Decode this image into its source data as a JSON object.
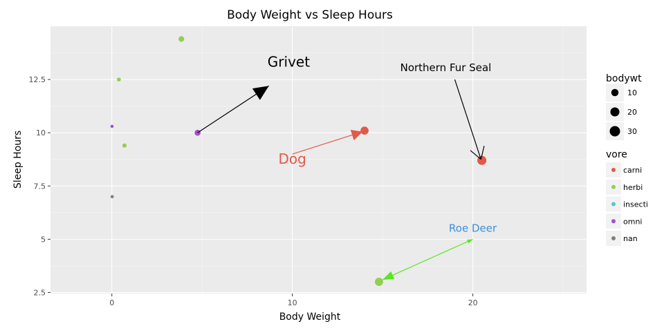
{
  "chart_data": {
    "type": "scatter",
    "title": "Body Weight vs Sleep Hours",
    "xlabel": "Body Weight",
    "ylabel": "Sleep Hours",
    "xlim": [
      -3.4,
      26.3
    ],
    "ylim": [
      2.45,
      15.0
    ],
    "x_ticks": [
      0,
      10,
      20
    ],
    "x_tick_labels": [
      "0",
      "10",
      "20"
    ],
    "y_ticks": [
      2.5,
      5,
      7.5,
      10,
      12.5
    ],
    "y_tick_labels": [
      "2.5",
      "5",
      "7.5",
      "10",
      "12.5"
    ],
    "grid": true,
    "colors": {
      "carni": "#e05a4a",
      "herbi": "#8fd14f",
      "insecti": "#52c7d2",
      "omni": "#a050d0",
      "nan": "#7f7f7f"
    },
    "points": [
      {
        "x": 3.85,
        "y": 14.4,
        "size": 3.85,
        "vore": "herbi"
      },
      {
        "x": 0.39,
        "y": 12.5,
        "size": 0.39,
        "vore": "herbi"
      },
      {
        "x": 0.01,
        "y": 10.3,
        "size": 0.01,
        "vore": "omni"
      },
      {
        "x": 4.75,
        "y": 10.0,
        "size": 4.75,
        "vore": "omni"
      },
      {
        "x": 0.7,
        "y": 9.4,
        "size": 0.7,
        "vore": "herbi"
      },
      {
        "x": 0.02,
        "y": 7.0,
        "size": 0.02,
        "vore": "nan"
      },
      {
        "x": 14.0,
        "y": 10.1,
        "size": 14.0,
        "vore": "carni"
      },
      {
        "x": 20.5,
        "y": 8.7,
        "size": 20.5,
        "vore": "carni"
      },
      {
        "x": 14.8,
        "y": 3.0,
        "size": 14.8,
        "vore": "herbi"
      }
    ],
    "annotations": [
      {
        "text": "Grivet",
        "text_x": 9.8,
        "text_y": 13.1,
        "arrow_from": [
          4.75,
          10.0
        ],
        "arrow_to": [
          8.7,
          12.2
        ],
        "color": "#000000",
        "font_size": 20,
        "head": "large"
      },
      {
        "text": "Dog",
        "text_x": 10.0,
        "text_y": 8.55,
        "arrow_from": [
          10.0,
          9.0
        ],
        "arrow_to": [
          13.9,
          10.05
        ],
        "color": "#e05a4a",
        "font_size": 20,
        "head": "medium"
      },
      {
        "text": "Northern Fur Seal",
        "text_x": 18.5,
        "text_y": 12.9,
        "arrow_from": [
          19.0,
          12.5
        ],
        "arrow_to": [
          20.45,
          8.75
        ],
        "color": "#000000",
        "font_size": 15,
        "head": "open"
      },
      {
        "text": "Roe Deer",
        "text_x": 20.0,
        "text_y": 5.35,
        "arrow_from": [
          20.0,
          5.0
        ],
        "arrow_to": [
          15.0,
          3.1
        ],
        "color": "#57e81e",
        "text_color": "#3a8fd8",
        "font_size": 15,
        "head": "both"
      }
    ],
    "legend": {
      "placement": "right",
      "size_title": "bodywt",
      "size_entries": [
        {
          "label": "10",
          "value": 10
        },
        {
          "label": "20",
          "value": 20
        },
        {
          "label": "30",
          "value": 30
        }
      ],
      "color_title": "vore",
      "color_entries": [
        "carni",
        "herbi",
        "insecti",
        "omni",
        "nan"
      ]
    }
  }
}
